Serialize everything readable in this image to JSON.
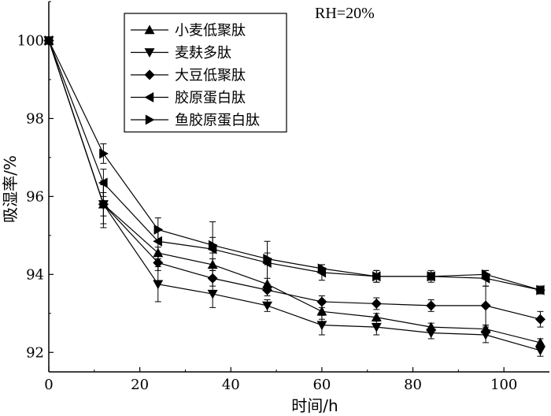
{
  "chart_data": {
    "type": "line",
    "title": "",
    "annotation": "RH=20%",
    "xlabel": "时间/h",
    "ylabel": "吸湿率/%",
    "xlim": [
      0,
      110
    ],
    "ylim": [
      91.5,
      101
    ],
    "xticks": [
      0,
      20,
      40,
      60,
      80,
      100
    ],
    "yticks": [
      92,
      94,
      96,
      98,
      100
    ],
    "x": [
      0,
      12,
      24,
      36,
      48,
      60,
      72,
      84,
      96,
      108
    ],
    "legend_position": "top-left",
    "series": [
      {
        "name": "小麦低聚肽",
        "marker": "triangle-up",
        "values": [
          100,
          95.8,
          94.55,
          94.25,
          93.75,
          93.05,
          92.9,
          92.65,
          92.6,
          92.25
        ],
        "errors": [
          0,
          0.3,
          0.15,
          0.15,
          0.15,
          0.2,
          0.1,
          0.1,
          0.1,
          0.1
        ]
      },
      {
        "name": "麦麸多肽",
        "marker": "triangle-down",
        "values": [
          100,
          95.8,
          93.75,
          93.5,
          93.2,
          92.7,
          92.65,
          92.5,
          92.45,
          92.05
        ],
        "errors": [
          0,
          0.6,
          0.45,
          0.35,
          0.15,
          0.25,
          0.2,
          0.15,
          0.2,
          0.15
        ]
      },
      {
        "name": "大豆低聚肽",
        "marker": "diamond",
        "values": [
          100,
          95.8,
          94.3,
          93.9,
          93.6,
          93.3,
          93.25,
          93.2,
          93.2,
          92.85
        ],
        "errors": [
          0,
          0.5,
          0.2,
          0.2,
          0.15,
          0.15,
          0.15,
          0.15,
          0.5,
          0.2
        ]
      },
      {
        "name": "胶原蛋白肽",
        "marker": "triangle-left",
        "values": [
          100,
          96.35,
          94.85,
          94.65,
          94.3,
          94.05,
          93.95,
          93.95,
          93.9,
          93.6
        ],
        "errors": [
          0,
          0.35,
          0.3,
          0.7,
          0.55,
          0.2,
          0.15,
          0.15,
          0.2,
          0.1
        ]
      },
      {
        "name": "鱼胶原蛋白肽",
        "marker": "triangle-right",
        "values": [
          100,
          97.1,
          95.15,
          94.75,
          94.4,
          94.15,
          93.95,
          93.95,
          94.0,
          93.6
        ],
        "errors": [
          0,
          0.25,
          0.3,
          0.2,
          0.15,
          0.1,
          0.15,
          0.1,
          0.1,
          0.1
        ]
      }
    ]
  }
}
